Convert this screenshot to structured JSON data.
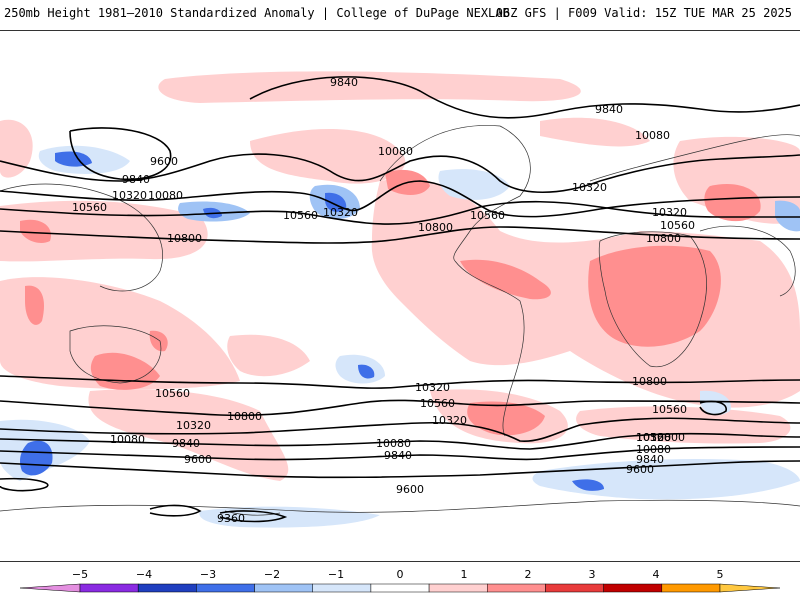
{
  "header": {
    "title": "250mb Height 1981–2010 Standardized Anomaly | College of DuPage NEXLAB",
    "run_info": "06Z GFS | F009 Valid: 15Z TUE MAR 25 2025"
  },
  "map": {
    "contour_labels": [
      "9840",
      "9840",
      "9600",
      "9840",
      "10320",
      "10080",
      "10080",
      "10560",
      "10560",
      "10320",
      "10800",
      "10080",
      "10320",
      "10560",
      "10320",
      "10560",
      "10800",
      "10800",
      "10560",
      "10320",
      "10800",
      "10800",
      "10560",
      "10320",
      "10560",
      "10080",
      "10320",
      "9840",
      "10080",
      "9600",
      "9840",
      "9600",
      "10800",
      "10560",
      "10320",
      "10080",
      "9840",
      "9600",
      "9360"
    ]
  },
  "colorbar": {
    "ticks": [
      "−5",
      "−4",
      "−3",
      "−2",
      "−1",
      "0",
      "1",
      "2",
      "3",
      "4",
      "5"
    ],
    "colors": [
      "#e48fe0",
      "#8a2be2",
      "#1f3fbf",
      "#3f6fe8",
      "#9fc3f5",
      "#d6e6fa",
      "#ffffff",
      "#ffd0d0",
      "#ff8f8f",
      "#e83b3b",
      "#c00000",
      "#ff9900",
      "#ffc840"
    ]
  }
}
